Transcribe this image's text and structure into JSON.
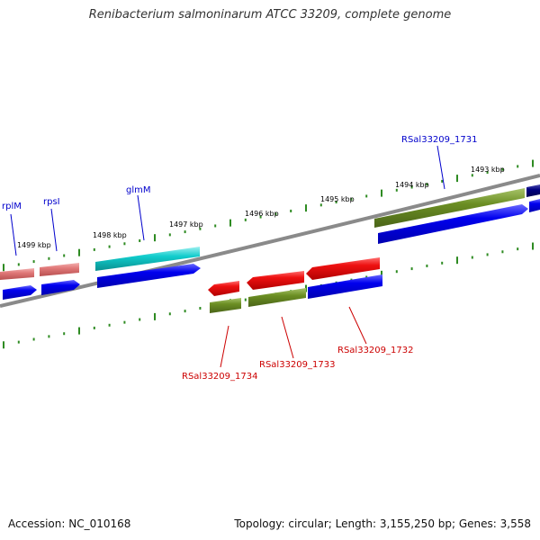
{
  "title": "Renibacterium salmoninarum ATCC 33209, complete genome",
  "footer": {
    "accession": "Accession: NC_010168",
    "summary": "Topology: circular; Length: 3,155,250 bp; Genes: 3,558"
  },
  "colors": {
    "backbone": "#8a8a8a",
    "cds": "#0000ee",
    "cds_highlight": "#4a4aff",
    "rrna_pink": "#e07878",
    "gene_red": "#ee1111",
    "gene_cyan": "#11cccc",
    "gene_olive": "#6b8e23",
    "gene_navy": "#000080",
    "tick_green": "#2e8b22",
    "label_blue": "#0000cc",
    "label_red": "#cc0000"
  },
  "map": {
    "kbp_marks": [
      {
        "name": "kbp-1499",
        "text": "1499 kbp"
      },
      {
        "name": "kbp-1498",
        "text": "1498 kbp"
      },
      {
        "name": "kbp-1497",
        "text": "1497 kbp"
      },
      {
        "name": "kbp-1496",
        "text": "1496 kbp"
      },
      {
        "name": "kbp-1495",
        "text": "1495 kbp"
      },
      {
        "name": "kbp-1494",
        "text": "1494 kbp"
      },
      {
        "name": "kbp-1493",
        "text": "1493 kbp"
      }
    ],
    "gene_labels": [
      {
        "name": "label-rplM",
        "text": "rplM",
        "strand": "forward"
      },
      {
        "name": "label-rpsI",
        "text": "rpsI",
        "strand": "forward"
      },
      {
        "name": "label-glmM",
        "text": "glmM",
        "strand": "forward"
      },
      {
        "name": "label-RSal33209_1731",
        "text": "RSal33209_1731",
        "strand": "forward"
      },
      {
        "name": "label-RSal33209_1734",
        "text": "RSal33209_1734",
        "strand": "reverse"
      },
      {
        "name": "label-RSal33209_1733",
        "text": "RSal33209_1733",
        "strand": "reverse"
      },
      {
        "name": "label-RSal33209_1732",
        "text": "RSal33209_1732",
        "strand": "reverse"
      }
    ]
  }
}
